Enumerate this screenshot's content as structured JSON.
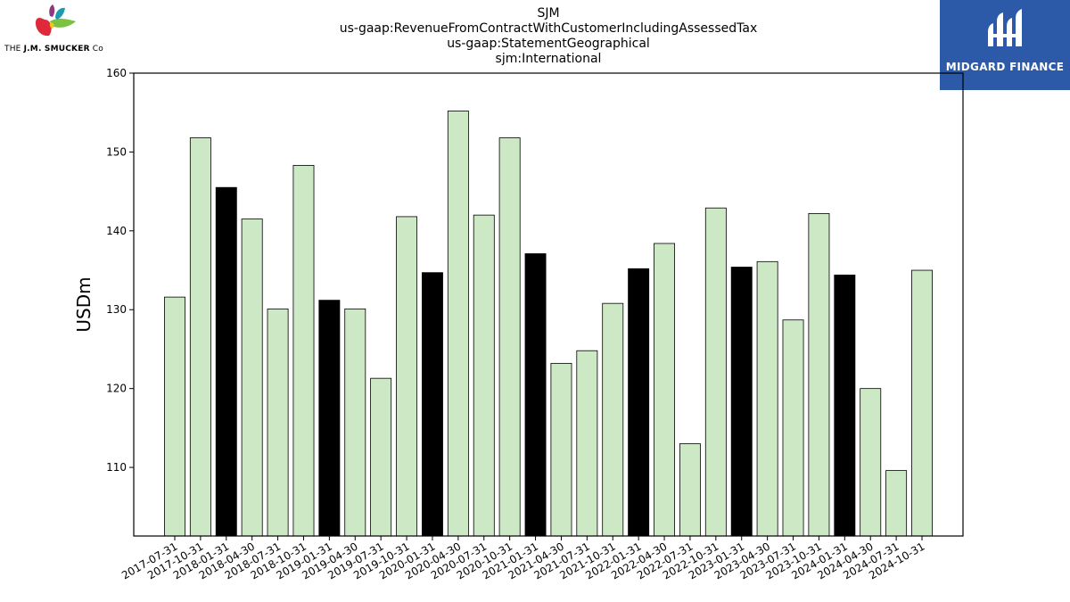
{
  "company_logo": {
    "tagline_prefix": "THE",
    "tagline_name": "J.M. SMUCKER",
    "tagline_suffix": "Co"
  },
  "brand_logo": {
    "text": "MIDGARD FINANCE",
    "background": "#2c5aa8"
  },
  "titles": {
    "line1": "SJM",
    "line2": "us-gaap:RevenueFromContractWithCustomerIncludingAssessedTax",
    "line3": "us-gaap:StatementGeographical",
    "line4": "sjm:International"
  },
  "chart_data": {
    "type": "bar",
    "ylabel": "USDm",
    "ylim": [
      101.3,
      160
    ],
    "yticks": [
      110,
      120,
      130,
      140,
      150,
      160
    ],
    "grid": false,
    "colors": {
      "default": "#cce8c4",
      "highlight": "#000000",
      "edge": "#000000"
    },
    "categories": [
      "2017-07-31",
      "2017-10-31",
      "2018-01-31",
      "2018-04-30",
      "2018-07-31",
      "2018-10-31",
      "2019-01-31",
      "2019-04-30",
      "2019-07-31",
      "2019-10-31",
      "2020-01-31",
      "2020-04-30",
      "2020-07-31",
      "2020-10-31",
      "2021-01-31",
      "2021-04-30",
      "2021-07-31",
      "2021-10-31",
      "2022-01-31",
      "2022-04-30",
      "2022-07-31",
      "2022-10-31",
      "2023-01-31",
      "2023-04-30",
      "2023-07-31",
      "2023-10-31",
      "2024-01-31",
      "2024-04-30",
      "2024-07-31",
      "2024-10-31"
    ],
    "values": [
      131.6,
      151.8,
      145.5,
      141.5,
      130.1,
      148.3,
      131.2,
      130.1,
      121.3,
      141.8,
      134.7,
      155.2,
      142.0,
      151.8,
      137.1,
      123.2,
      124.8,
      130.8,
      135.2,
      138.4,
      113.0,
      142.9,
      135.4,
      136.1,
      128.7,
      142.2,
      134.4,
      120.0,
      109.6,
      135.0
    ],
    "highlighted": [
      false,
      false,
      true,
      false,
      false,
      false,
      true,
      false,
      false,
      false,
      true,
      false,
      false,
      false,
      true,
      false,
      false,
      false,
      true,
      false,
      false,
      false,
      true,
      false,
      false,
      false,
      true,
      false,
      false,
      false
    ]
  }
}
